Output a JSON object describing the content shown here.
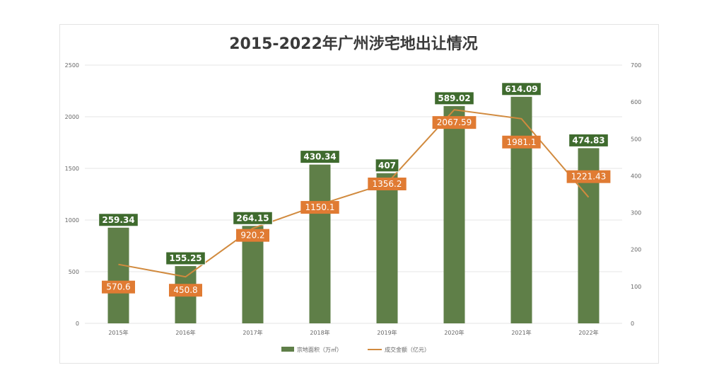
{
  "chart_data": {
    "type": "bar",
    "title": "2015-2022年广州涉宅地出让情况",
    "categories": [
      "2015年",
      "2016年",
      "2017年",
      "2018年",
      "2019年",
      "2020年",
      "2021年",
      "2022年"
    ],
    "series": [
      {
        "name": "宗地面积（万㎡）",
        "type": "bar",
        "axis": "right",
        "color": "#5f7f48",
        "values": [
          259.34,
          155.25,
          264.15,
          430.34,
          407,
          589.02,
          614.09,
          474.83
        ],
        "labels": [
          "259.34",
          "155.25",
          "264.15",
          "430.34",
          "407",
          "589.02",
          "614.09",
          "474.83"
        ]
      },
      {
        "name": "成交金额（亿元）",
        "type": "line",
        "axis": "left",
        "color": "#d18a3e",
        "values": [
          570.6,
          450.8,
          920.2,
          1150.1,
          1356.2,
          2067.59,
          1981.1,
          1221.43
        ],
        "labels": [
          "570.6",
          "450.8",
          "920.2",
          "1150.1",
          "1356.2",
          "2067.59",
          "1981.1",
          "1221.43"
        ]
      }
    ],
    "left_axis": {
      "ylim": [
        0,
        2500
      ],
      "ticks": [
        "0",
        "500",
        "1000",
        "1500",
        "2000",
        "2500"
      ]
    },
    "right_axis": {
      "ylim": [
        0,
        700
      ],
      "ticks": [
        "0",
        "100",
        "200",
        "300",
        "400",
        "500",
        "600",
        "700"
      ]
    },
    "grid": true,
    "legend_position": "bottom",
    "colors": {
      "bar": "#5f7f48",
      "line": "#d18a3e",
      "bar_label_bg": "#3f6b2e",
      "line_label_bg": "#e07b33"
    }
  }
}
